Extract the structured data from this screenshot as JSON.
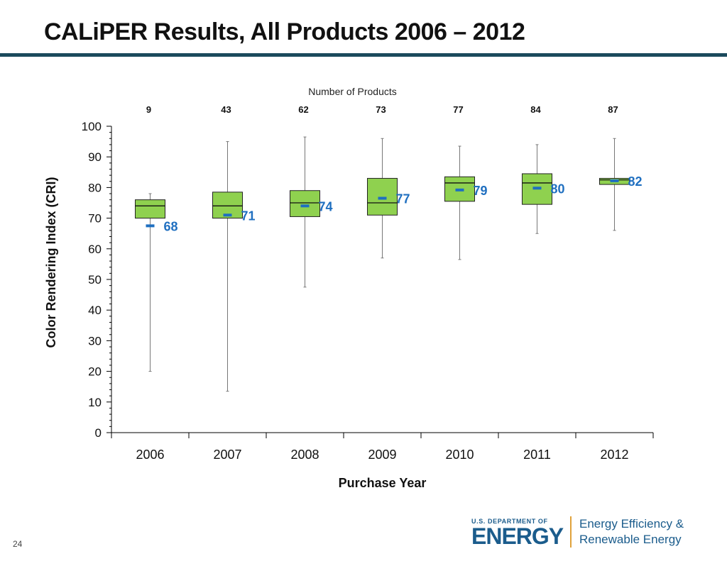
{
  "slide": {
    "title": "CALiPER Results, All Products 2006 – 2012",
    "page_number": "24"
  },
  "footer": {
    "doe_small": "U.S. DEPARTMENT OF",
    "doe_big": "ENERGY",
    "eere_line1": "Energy Efficiency &",
    "eere_line2": "Renewable Energy",
    "brand_color": "#1b5c8c",
    "divider_color": "#e0a23a"
  },
  "chart_data": {
    "type": "box",
    "xlabel": "Purchase Year",
    "ylabel": "Color Rendering Index (CRI)",
    "ylim": [
      0,
      100
    ],
    "yticks": [
      0,
      10,
      20,
      30,
      40,
      50,
      60,
      70,
      80,
      90,
      100
    ],
    "top_label": "Number of Products",
    "categories": [
      "2006",
      "2007",
      "2008",
      "2009",
      "2010",
      "2011",
      "2012"
    ],
    "counts": [
      "9",
      "43",
      "62",
      "73",
      "77",
      "84",
      "87"
    ],
    "min": [
      20,
      13.5,
      47.5,
      57,
      56.5,
      65,
      66
    ],
    "q1": [
      70,
      70,
      70.5,
      71,
      75.5,
      74.5,
      81
    ],
    "median": [
      74,
      74,
      75,
      75,
      81.5,
      81.5,
      82.5
    ],
    "q3": [
      76,
      78.5,
      79,
      83,
      83.5,
      84.5,
      83
    ],
    "max": [
      78,
      95,
      96.5,
      96,
      93.5,
      94,
      96
    ],
    "mean": [
      67.5,
      71,
      74,
      76.5,
      79.2,
      79.8,
      82.2
    ],
    "mean_labels": [
      "68",
      "71",
      "74",
      "77",
      "79",
      "80",
      "82"
    ],
    "grid": false,
    "colors": {
      "box_fill": "#8fd14f",
      "mean_marker": "#1f6fc0",
      "mean_label": "#1f6fc0",
      "axis": "#000000"
    }
  }
}
